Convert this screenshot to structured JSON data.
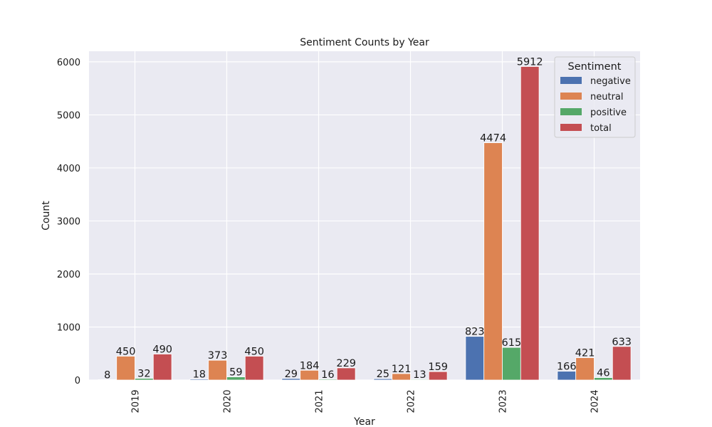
{
  "chart_data": {
    "type": "bar",
    "title": "Sentiment Counts by Year",
    "xlabel": "Year",
    "ylabel": "Count",
    "categories": [
      "2019",
      "2020",
      "2021",
      "2022",
      "2023",
      "2024"
    ],
    "series": [
      {
        "name": "negative",
        "color": "#4c72b0",
        "values": [
          8,
          18,
          29,
          25,
          823,
          166
        ]
      },
      {
        "name": "neutral",
        "color": "#dd8452",
        "values": [
          450,
          373,
          184,
          121,
          4474,
          421
        ]
      },
      {
        "name": "positive",
        "color": "#55a868",
        "values": [
          32,
          59,
          16,
          13,
          615,
          46
        ]
      },
      {
        "name": "total",
        "color": "#c44e52",
        "values": [
          490,
          450,
          229,
          159,
          5912,
          633
        ]
      }
    ],
    "ylim": [
      0,
      6200
    ],
    "yticks": [
      0,
      1000,
      2000,
      3000,
      4000,
      5000,
      6000
    ],
    "grid": true,
    "legend": {
      "title": "Sentiment",
      "position": "top-right"
    },
    "background_color": "#eaeaf2"
  }
}
